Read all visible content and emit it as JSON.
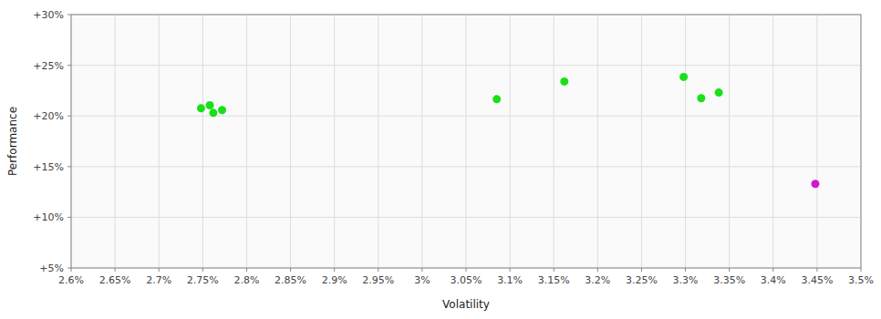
{
  "chart_data": {
    "type": "scatter",
    "xlabel": "Volatility",
    "ylabel": "Performance",
    "xlim": [
      0.026,
      0.035
    ],
    "ylim": [
      0.05,
      0.3
    ],
    "xticks": [
      {
        "value": 0.026,
        "label": "2.6%"
      },
      {
        "value": 0.0265,
        "label": "2.65%"
      },
      {
        "value": 0.027,
        "label": "2.7%"
      },
      {
        "value": 0.0275,
        "label": "2.75%"
      },
      {
        "value": 0.028,
        "label": "2.8%"
      },
      {
        "value": 0.0285,
        "label": "2.85%"
      },
      {
        "value": 0.029,
        "label": "2.9%"
      },
      {
        "value": 0.0295,
        "label": "2.95%"
      },
      {
        "value": 0.03,
        "label": "3%"
      },
      {
        "value": 0.0305,
        "label": "3.05%"
      },
      {
        "value": 0.031,
        "label": "3.1%"
      },
      {
        "value": 0.0315,
        "label": "3.15%"
      },
      {
        "value": 0.032,
        "label": "3.2%"
      },
      {
        "value": 0.0325,
        "label": "3.25%"
      },
      {
        "value": 0.033,
        "label": "3.3%"
      },
      {
        "value": 0.0335,
        "label": "3.35%"
      },
      {
        "value": 0.034,
        "label": "3.4%"
      },
      {
        "value": 0.0345,
        "label": "3.45%"
      },
      {
        "value": 0.035,
        "label": "3.5%"
      }
    ],
    "yticks": [
      {
        "value": 0.05,
        "label": "+5%"
      },
      {
        "value": 0.1,
        "label": "+10%"
      },
      {
        "value": 0.15,
        "label": "+15%"
      },
      {
        "value": 0.2,
        "label": "+20%"
      },
      {
        "value": 0.25,
        "label": "+25%"
      },
      {
        "value": 0.3,
        "label": "+30%"
      }
    ],
    "grid": true,
    "series": [
      {
        "color": "#00dd00",
        "x": [
          0.02748,
          0.02758,
          0.02762,
          0.02772,
          0.03085,
          0.03162,
          0.03298,
          0.03318,
          0.03338
        ],
        "values": [
          0.2075,
          0.2105,
          0.203,
          0.2058,
          0.2165,
          0.234,
          0.2385,
          0.2175,
          0.223
        ]
      },
      {
        "color": "#cc00cc",
        "x": [
          0.03448
        ],
        "values": [
          0.133
        ]
      }
    ]
  }
}
